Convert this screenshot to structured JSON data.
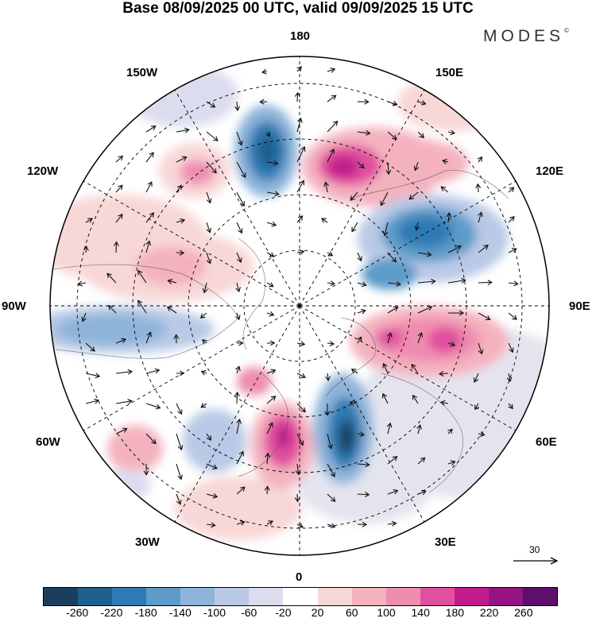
{
  "title": "Base 08/09/2025 00 UTC, valid 09/09/2025 15 UTC",
  "brand": "MODES",
  "brand_mark": "©",
  "longitude_labels": {
    "top": "180",
    "w150": "150W",
    "e150": "150E",
    "w120": "120W",
    "e120": "120E",
    "w90": "90W",
    "e90": "90E",
    "w60": "60W",
    "e60": "60E",
    "w30": "30W",
    "e30": "30E",
    "bottom": "0"
  },
  "reference_vector": {
    "label": "30",
    "icon": "arrow-right-icon"
  },
  "colorbar": {
    "ticks": [
      "-260",
      "-220",
      "-180",
      "-140",
      "-100",
      "-60",
      "-20",
      "20",
      "60",
      "100",
      "140",
      "180",
      "220",
      "260"
    ],
    "colors": [
      "#1a3f5e",
      "#1f5f8b",
      "#2e7ab4",
      "#5d9bc9",
      "#8eb4da",
      "#b9c9e6",
      "#dcdcef",
      "#ffffff",
      "#f8d7d7",
      "#f4b2bf",
      "#ee8db0",
      "#e0509e",
      "#c21c8c",
      "#961481",
      "#5e0f6e"
    ]
  }
}
